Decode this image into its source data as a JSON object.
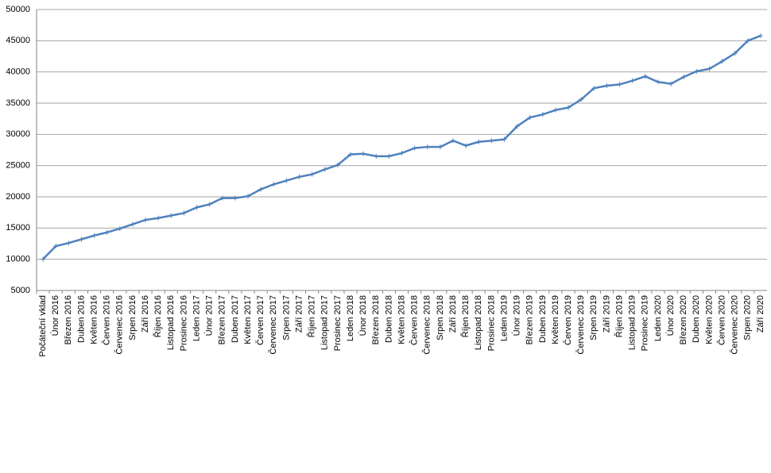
{
  "chart_data": {
    "type": "line",
    "categories": [
      "Počáteční vklad",
      "Únor 2016",
      "Březen 2016",
      "Duben 2016",
      "Květen 2016",
      "Červen 2016",
      "Červenec 2016",
      "Srpen 2016",
      "Září 2016",
      "Říjen 2016",
      "Listopad 2016",
      "Prosinec 2016",
      "Leden 2017",
      "Únor 2017",
      "Březen 2017",
      "Duben 2017",
      "Květen 2017",
      "Červen 2017",
      "Červenec 2017",
      "Srpen 2017",
      "Září 2017",
      "Říjen 2017",
      "Listopad 2017",
      "Prosinec 2017",
      "Leden 2018",
      "Únor 2018",
      "Březen 2018",
      "Duben 2018",
      "Květen 2018",
      "Červen 2018",
      "Červenec 2018",
      "Srpen 2018",
      "Září 2018",
      "Říjen 2018",
      "Listopad 2018",
      "Prosinec 2018",
      "Leden 2019",
      "Únor 2019",
      "Březen 2019",
      "Duben 2019",
      "Květen 2019",
      "Červen 2019",
      "Červenec 2019",
      "Srpen 2019",
      "Září 2019",
      "Říjen 2019",
      "Listopad 2019",
      "Prosinec 2019",
      "Leden 2020",
      "Únor 2020",
      "Březen 2020",
      "Duben 2020",
      "Květen 2020",
      "Červen 2020",
      "Červenec 2020",
      "Srpen 2020",
      "Září 2020"
    ],
    "values": [
      10000,
      12100,
      12600,
      13200,
      13800,
      14300,
      14900,
      15600,
      16300,
      16600,
      17000,
      17400,
      18300,
      18800,
      19800,
      19800,
      20100,
      21200,
      22000,
      22600,
      23200,
      23600,
      24400,
      25100,
      26800,
      26900,
      26500,
      26500,
      27000,
      27800,
      28000,
      28000,
      29000,
      28200,
      28800,
      29000,
      29200,
      31300,
      32700,
      33200,
      33900,
      34300,
      35600,
      37400,
      37800,
      38000,
      38600,
      39300,
      38400,
      38100,
      39200,
      40100,
      40500,
      41700,
      43000,
      45000,
      45800
    ],
    "color": "#4f81bd",
    "ylim": [
      5000,
      50000
    ],
    "yticks": [
      5000,
      10000,
      15000,
      20000,
      25000,
      30000,
      35000,
      40000,
      45000,
      50000
    ],
    "grid": true
  }
}
